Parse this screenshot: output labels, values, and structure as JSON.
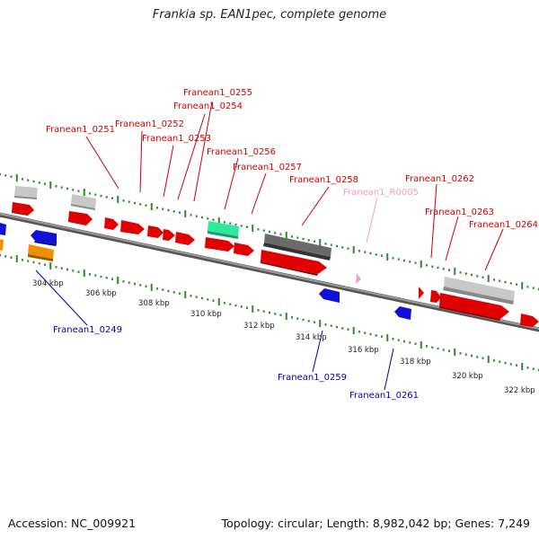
{
  "title": "Frankia sp. EAN1pec, complete genome",
  "footer": {
    "accession": "Accession: NC_009921",
    "summary": "Topology: circular; Length: 8,982,042 bp; Genes: 7,249"
  },
  "colors": {
    "backbone": "#7a7a7a",
    "tick": "#2d8a2d",
    "cds_forward": "#e00000",
    "cds_reverse": "#1010d8",
    "grey_feature": "#c0c0c0",
    "dark_feature": "#666666",
    "green_feature": "#2ee8a0",
    "orange_feature": "#f09000",
    "label_forward": "#cc0000",
    "label_reverse": "#0000aa",
    "label_rna": "#f0a0c0"
  },
  "scale_labels": [
    "304 kbp",
    "306 kbp",
    "308 kbp",
    "310 kbp",
    "312 kbp",
    "314 kbp",
    "316 kbp",
    "318 kbp",
    "320 kbp",
    "322 kbp"
  ],
  "gene_labels": [
    {
      "text": "Franean1_0255",
      "strand": "forward"
    },
    {
      "text": "Franean1_0254",
      "strand": "forward"
    },
    {
      "text": "Franean1_0252",
      "strand": "forward"
    },
    {
      "text": "Franean1_0251",
      "strand": "forward"
    },
    {
      "text": "Franean1_0253",
      "strand": "forward"
    },
    {
      "text": "Franean1_0256",
      "strand": "forward"
    },
    {
      "text": "Franean1_0257",
      "strand": "forward"
    },
    {
      "text": "Franean1_0258",
      "strand": "forward"
    },
    {
      "text": "Franean1_R0005",
      "strand": "rna"
    },
    {
      "text": "Franean1_0262",
      "strand": "forward"
    },
    {
      "text": "Franean1_0263",
      "strand": "forward"
    },
    {
      "text": "Franean1_0264",
      "strand": "forward"
    },
    {
      "text": "Franean1_0249",
      "strand": "reverse"
    },
    {
      "text": "Franean1_0259",
      "strand": "reverse"
    },
    {
      "text": "Franean1_0261",
      "strand": "reverse"
    }
  ]
}
